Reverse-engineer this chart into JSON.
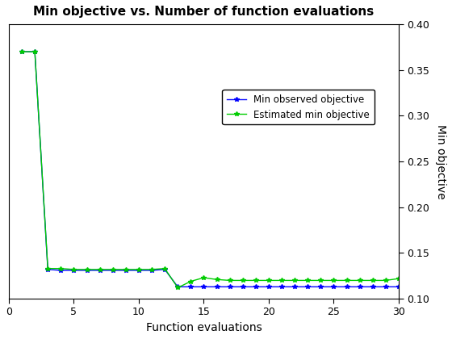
{
  "title": "Min objective vs. Number of function evaluations",
  "xlabel": "Function evaluations",
  "ylabel": "Min objective",
  "xlim": [
    0,
    30
  ],
  "ylim": [
    0.1,
    0.4
  ],
  "yticks": [
    0.1,
    0.15,
    0.2,
    0.25,
    0.3,
    0.35,
    0.4
  ],
  "xticks": [
    0,
    5,
    10,
    15,
    20,
    25,
    30
  ],
  "blue_x": [
    1,
    2,
    3,
    4,
    5,
    6,
    7,
    8,
    9,
    10,
    11,
    12,
    13,
    14,
    15,
    16,
    17,
    18,
    19,
    20,
    21,
    22,
    23,
    24,
    25,
    26,
    27,
    28,
    29,
    30
  ],
  "blue_y": [
    0.37,
    0.37,
    0.132,
    0.131,
    0.131,
    0.131,
    0.131,
    0.131,
    0.131,
    0.131,
    0.131,
    0.132,
    0.113,
    0.113,
    0.113,
    0.113,
    0.113,
    0.113,
    0.113,
    0.113,
    0.113,
    0.113,
    0.113,
    0.113,
    0.113,
    0.113,
    0.113,
    0.113,
    0.113,
    0.113
  ],
  "green_x": [
    1,
    2,
    3,
    4,
    5,
    6,
    7,
    8,
    9,
    10,
    11,
    12,
    13,
    14,
    15,
    16,
    17,
    18,
    19,
    20,
    21,
    22,
    23,
    24,
    25,
    26,
    27,
    28,
    29,
    30
  ],
  "green_y": [
    0.37,
    0.37,
    0.133,
    0.133,
    0.132,
    0.132,
    0.132,
    0.132,
    0.132,
    0.132,
    0.132,
    0.133,
    0.112,
    0.119,
    0.123,
    0.121,
    0.12,
    0.12,
    0.12,
    0.12,
    0.12,
    0.12,
    0.12,
    0.12,
    0.12,
    0.12,
    0.12,
    0.12,
    0.12,
    0.122
  ],
  "blue_color": "#0000ff",
  "green_color": "#00cc00",
  "legend_labels": [
    "Min observed objective",
    "Estimated min objective"
  ],
  "background_color": "#ffffff",
  "figsize": [
    5.6,
    4.2
  ],
  "dpi": 100
}
